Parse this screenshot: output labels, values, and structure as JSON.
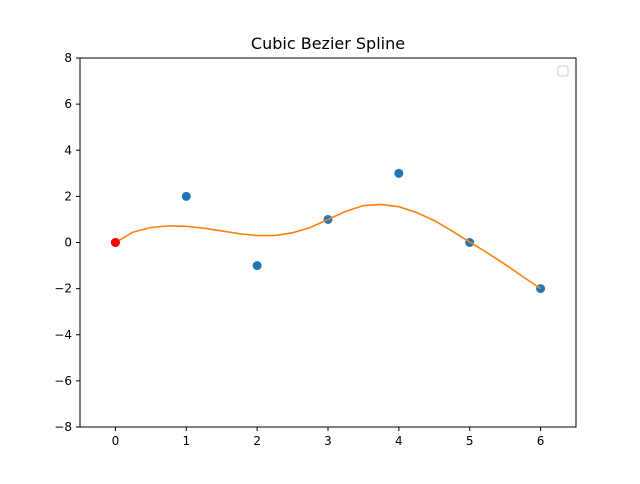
{
  "chart_data": {
    "type": "line",
    "title": "Cubic Bezier Spline",
    "xlabel": "",
    "ylabel": "",
    "xlim": [
      -0.5,
      6.5
    ],
    "ylim": [
      -8,
      8
    ],
    "x_ticks": [
      0,
      1,
      2,
      3,
      4,
      5,
      6
    ],
    "y_ticks": [
      -8,
      -6,
      -4,
      -2,
      0,
      2,
      4,
      6,
      8
    ],
    "x_tick_labels": [
      "0",
      "1",
      "2",
      "3",
      "4",
      "5",
      "6"
    ],
    "y_tick_labels": [
      "−8",
      "−6",
      "−4",
      "−2",
      "0",
      "2",
      "4",
      "6",
      "8"
    ],
    "grid": false,
    "legend": {
      "placement": "top-right",
      "entries": []
    },
    "series": [
      {
        "type": "scatter",
        "color": "#1f77b4",
        "x": [
          0,
          1,
          2,
          3,
          4,
          5,
          6
        ],
        "y": [
          0,
          2,
          -1,
          1,
          3,
          0,
          -2
        ]
      },
      {
        "type": "line",
        "color": "#ff7f0e",
        "x": [
          0,
          0.25,
          0.5,
          0.75,
          1.0,
          1.25,
          1.5,
          1.75,
          2.0,
          2.25,
          2.5,
          2.75,
          3.0,
          3.25,
          3.5,
          3.75,
          4.0,
          4.25,
          4.5,
          4.75,
          5.0,
          5.25,
          5.5,
          5.75,
          6.0
        ],
        "y": [
          0.0,
          0.45,
          0.65,
          0.72,
          0.7,
          0.62,
          0.5,
          0.38,
          0.3,
          0.3,
          0.42,
          0.65,
          1.0,
          1.35,
          1.6,
          1.65,
          1.55,
          1.3,
          0.95,
          0.5,
          0.02,
          -0.45,
          -0.95,
          -1.48,
          -2.0
        ]
      },
      {
        "type": "scatter",
        "color": "#ff0000",
        "x": [
          0
        ],
        "y": [
          0
        ]
      }
    ]
  }
}
